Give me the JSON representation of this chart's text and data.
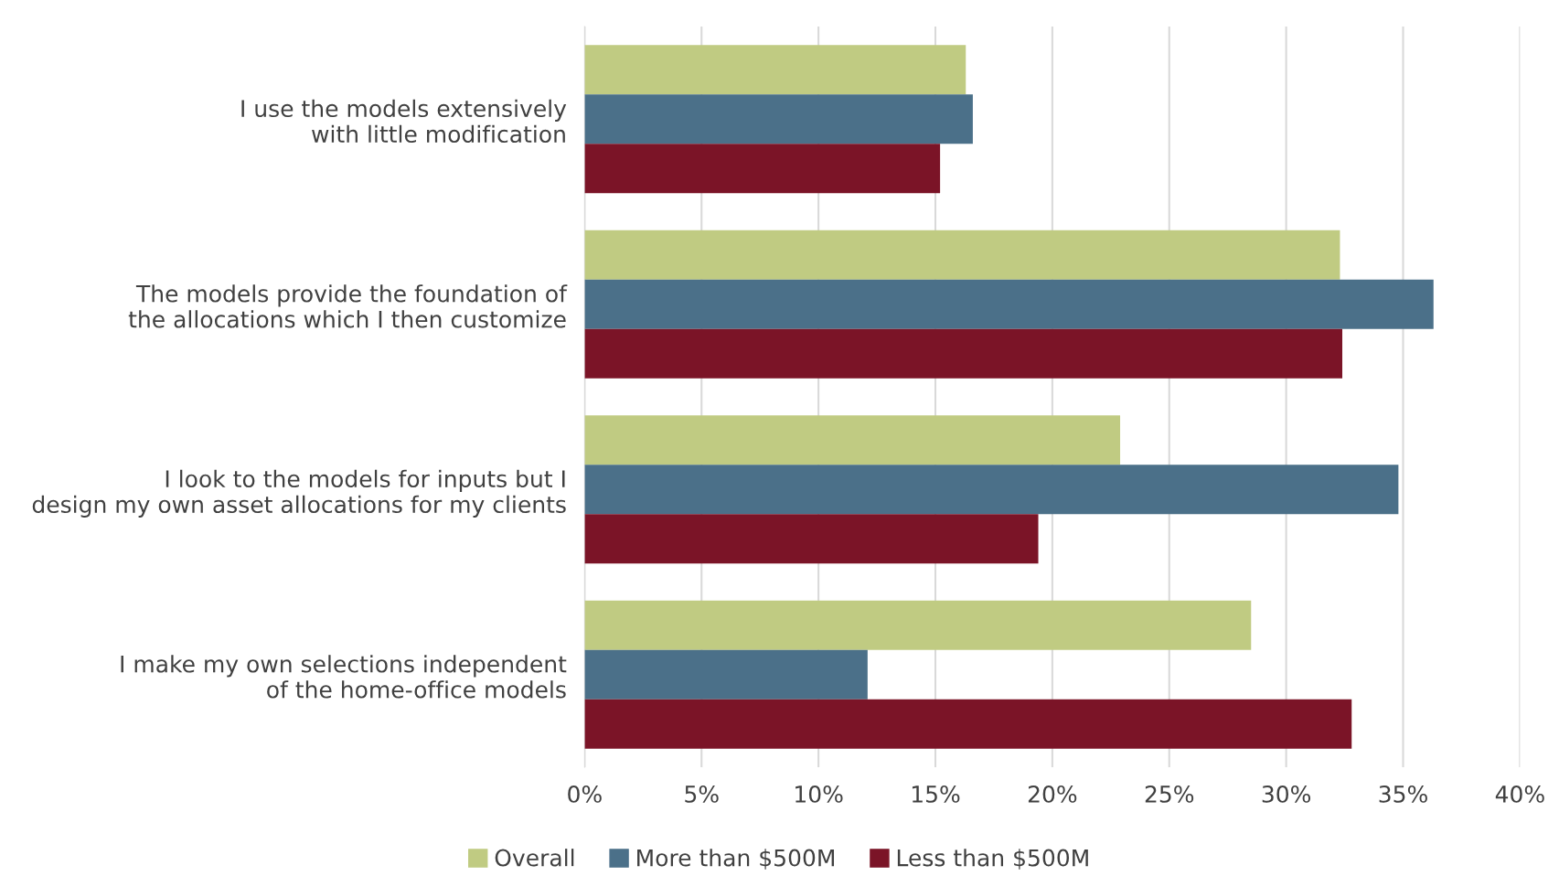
{
  "chart_data": {
    "type": "bar",
    "orientation": "horizontal",
    "categories": [
      "I use the models extensively\nwith little modification",
      "The models provide the foundation of\nthe allocations which I then customize",
      "I look to the models for inputs but I\ndesign my own asset allocations for my clients",
      "I make my own selections independent\nof the home-office models"
    ],
    "series": [
      {
        "name": "Overall",
        "color": "#c0cb82",
        "values": [
          16.3,
          32.3,
          22.9,
          28.5
        ]
      },
      {
        "name": "More than $500M",
        "color": "#4b7089",
        "values": [
          16.6,
          36.3,
          34.8,
          12.1
        ]
      },
      {
        "name": "Less than $500M",
        "color": "#7b1427",
        "values": [
          15.2,
          32.4,
          19.4,
          32.8
        ]
      }
    ],
    "xlim": [
      0,
      40
    ],
    "xticks": [
      {
        "value": 0,
        "label": "0%"
      },
      {
        "value": 5,
        "label": "5%"
      },
      {
        "value": 10,
        "label": "10%"
      },
      {
        "value": 15,
        "label": "15%"
      },
      {
        "value": 20,
        "label": "20%"
      },
      {
        "value": 25,
        "label": "25%"
      },
      {
        "value": 30,
        "label": "30%"
      },
      {
        "value": 35,
        "label": "35%"
      },
      {
        "value": 40,
        "label": "40%"
      }
    ],
    "grid": "x",
    "legend": "bottom"
  }
}
